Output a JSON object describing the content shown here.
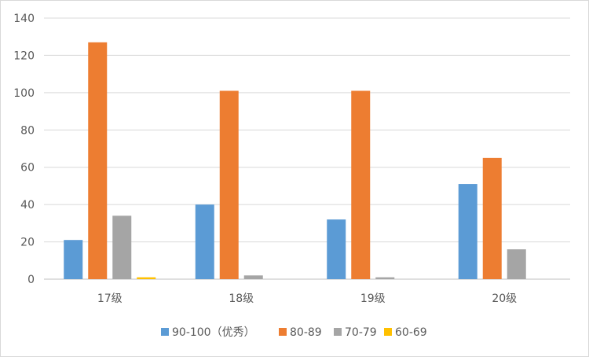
{
  "chart_data": {
    "type": "bar",
    "title": "",
    "xlabel": "",
    "ylabel": "",
    "categories": [
      "17级",
      "18级",
      "19级",
      "20级"
    ],
    "series": [
      {
        "name": "90-100（优秀）",
        "color": "#5b9bd5",
        "values": [
          21,
          40,
          32,
          51
        ]
      },
      {
        "name": "80-89",
        "color": "#ed7d31",
        "values": [
          127,
          101,
          101,
          65
        ]
      },
      {
        "name": "70-79",
        "color": "#a5a5a5",
        "values": [
          34,
          2,
          1,
          16
        ]
      },
      {
        "name": "60-69",
        "color": "#ffc000",
        "values": [
          1,
          0,
          0,
          0
        ]
      }
    ],
    "ylim": [
      0,
      140
    ],
    "yticks": [
      0,
      20,
      40,
      60,
      80,
      100,
      120,
      140
    ],
    "grid": true,
    "legend_position": "bottom"
  }
}
